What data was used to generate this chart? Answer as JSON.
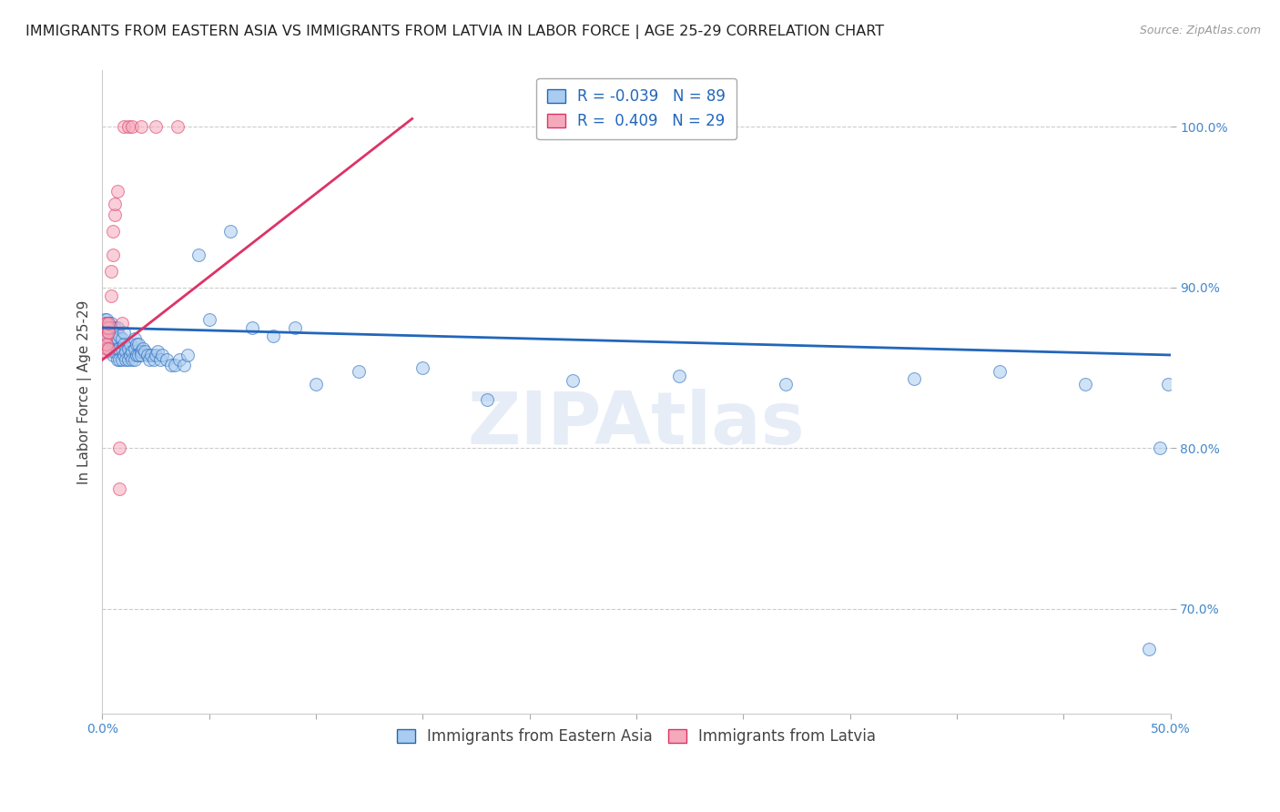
{
  "title": "IMMIGRANTS FROM EASTERN ASIA VS IMMIGRANTS FROM LATVIA IN LABOR FORCE | AGE 25-29 CORRELATION CHART",
  "source": "Source: ZipAtlas.com",
  "ylabel": "In Labor Force | Age 25-29",
  "x_min": 0.0,
  "x_max": 0.5,
  "y_min": 0.635,
  "y_max": 1.035,
  "blue_R": -0.039,
  "blue_N": 89,
  "pink_R": 0.409,
  "pink_N": 29,
  "blue_color": "#aaccf0",
  "pink_color": "#f5aabb",
  "blue_line_color": "#2266bb",
  "pink_line_color": "#dd3366",
  "legend_label_blue": "Immigrants from Eastern Asia",
  "legend_label_pink": "Immigrants from Latvia",
  "watermark": "ZIPAtlas",
  "blue_scatter_x": [
    0.001,
    0.001,
    0.001,
    0.002,
    0.002,
    0.002,
    0.002,
    0.003,
    0.003,
    0.003,
    0.003,
    0.003,
    0.004,
    0.004,
    0.004,
    0.004,
    0.005,
    0.005,
    0.005,
    0.005,
    0.005,
    0.006,
    0.006,
    0.006,
    0.007,
    0.007,
    0.007,
    0.007,
    0.008,
    0.008,
    0.008,
    0.009,
    0.009,
    0.009,
    0.01,
    0.01,
    0.01,
    0.011,
    0.011,
    0.012,
    0.012,
    0.013,
    0.013,
    0.014,
    0.014,
    0.015,
    0.015,
    0.015,
    0.016,
    0.016,
    0.017,
    0.017,
    0.018,
    0.018,
    0.019,
    0.02,
    0.021,
    0.022,
    0.023,
    0.024,
    0.025,
    0.026,
    0.027,
    0.028,
    0.03,
    0.032,
    0.034,
    0.036,
    0.038,
    0.04,
    0.045,
    0.05,
    0.06,
    0.07,
    0.08,
    0.09,
    0.1,
    0.12,
    0.15,
    0.18,
    0.22,
    0.27,
    0.32,
    0.38,
    0.42,
    0.46,
    0.49,
    0.495,
    0.499
  ],
  "blue_scatter_y": [
    0.875,
    0.88,
    0.87,
    0.875,
    0.88,
    0.87,
    0.865,
    0.875,
    0.87,
    0.878,
    0.865,
    0.872,
    0.875,
    0.868,
    0.86,
    0.878,
    0.872,
    0.868,
    0.875,
    0.862,
    0.858,
    0.875,
    0.868,
    0.86,
    0.875,
    0.868,
    0.862,
    0.855,
    0.87,
    0.862,
    0.855,
    0.868,
    0.862,
    0.855,
    0.865,
    0.858,
    0.872,
    0.86,
    0.855,
    0.862,
    0.855,
    0.858,
    0.865,
    0.86,
    0.855,
    0.862,
    0.855,
    0.868,
    0.858,
    0.865,
    0.858,
    0.865,
    0.86,
    0.858,
    0.862,
    0.86,
    0.858,
    0.855,
    0.858,
    0.855,
    0.858,
    0.86,
    0.855,
    0.858,
    0.855,
    0.852,
    0.852,
    0.855,
    0.852,
    0.858,
    0.92,
    0.88,
    0.935,
    0.875,
    0.87,
    0.875,
    0.84,
    0.848,
    0.85,
    0.83,
    0.842,
    0.845,
    0.84,
    0.843,
    0.848,
    0.84,
    0.675,
    0.8,
    0.84
  ],
  "pink_scatter_x": [
    0.001,
    0.001,
    0.001,
    0.001,
    0.002,
    0.002,
    0.002,
    0.002,
    0.002,
    0.003,
    0.003,
    0.003,
    0.003,
    0.004,
    0.004,
    0.005,
    0.005,
    0.006,
    0.006,
    0.007,
    0.008,
    0.008,
    0.009,
    0.01,
    0.012,
    0.014,
    0.018,
    0.025,
    0.035
  ],
  "pink_scatter_y": [
    0.875,
    0.868,
    0.878,
    0.86,
    0.87,
    0.875,
    0.862,
    0.878,
    0.865,
    0.875,
    0.862,
    0.872,
    0.878,
    0.895,
    0.91,
    0.92,
    0.935,
    0.945,
    0.952,
    0.96,
    0.8,
    0.775,
    0.878,
    1.0,
    1.0,
    1.0,
    1.0,
    1.0,
    1.0
  ],
  "blue_trendline_x": [
    0.0,
    0.5
  ],
  "blue_trendline_y": [
    0.875,
    0.858
  ],
  "pink_trendline_x": [
    0.0,
    0.145
  ],
  "pink_trendline_y": [
    0.855,
    1.005
  ],
  "grid_color": "#cccccc",
  "bg_color": "#ffffff",
  "tick_label_color": "#4488cc",
  "title_color": "#222222",
  "title_fontsize": 11.5,
  "axis_label_fontsize": 11,
  "tick_fontsize": 10,
  "legend_fontsize": 12,
  "source_fontsize": 9,
  "scatter_size": 100,
  "scatter_alpha": 0.55,
  "scatter_linewidth": 0.8
}
